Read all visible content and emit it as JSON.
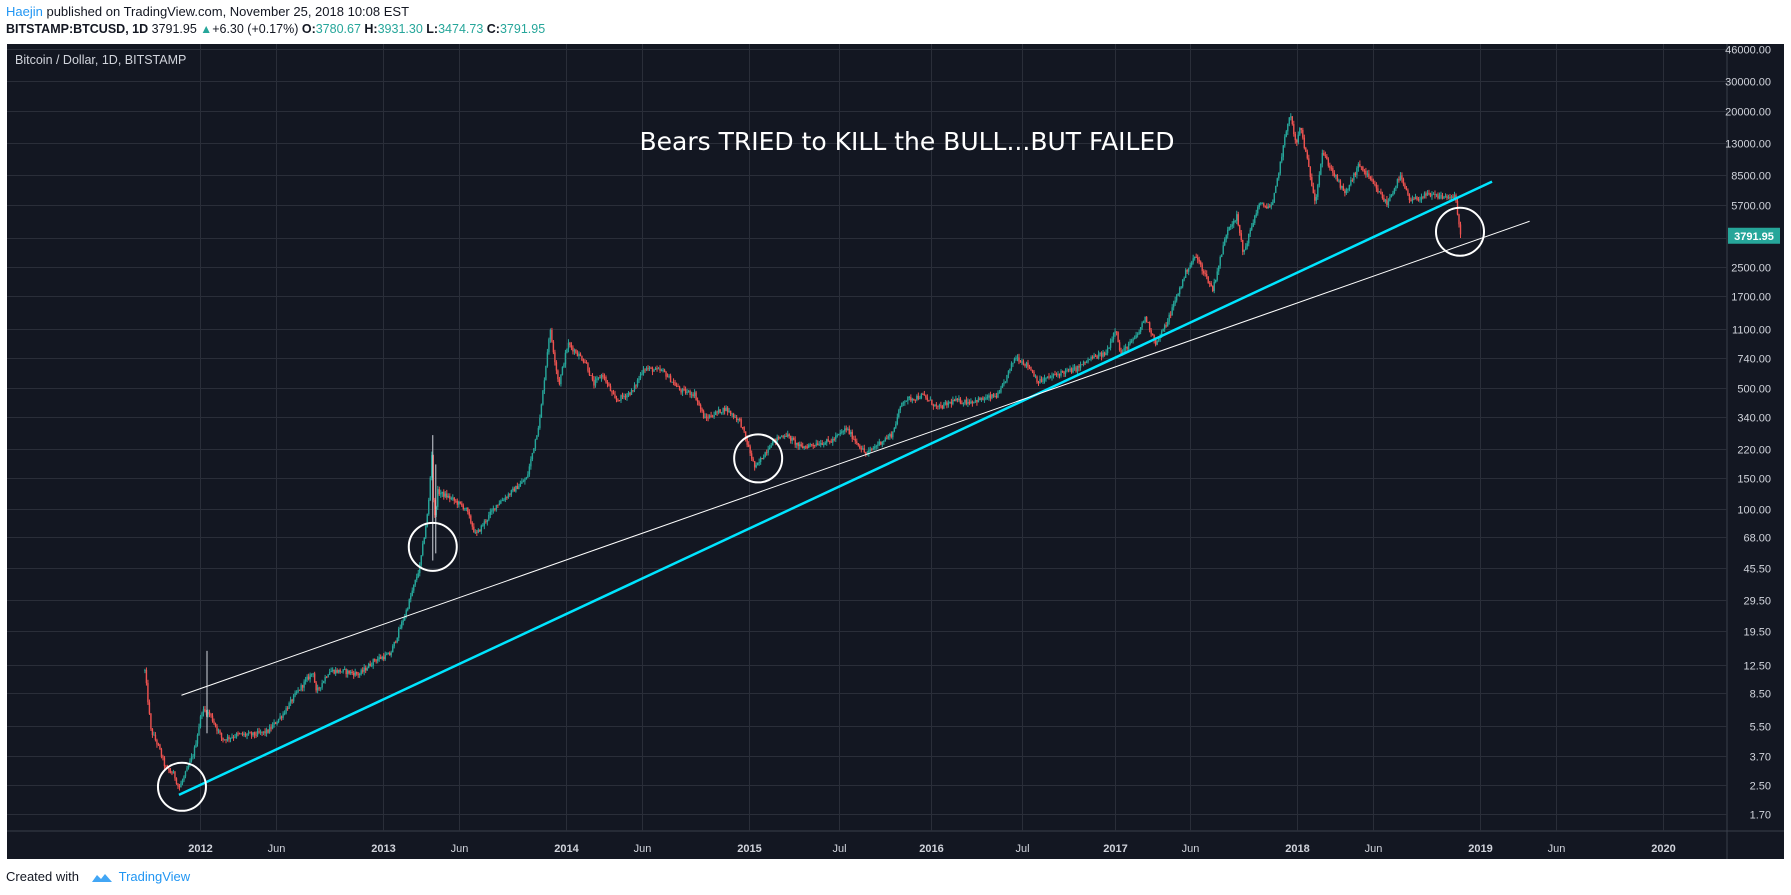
{
  "header": {
    "author": "Haejin",
    "published_text": " published on TradingView.com, November 25, 2018 10:08 EST",
    "symbol": "BITSTAMP:BTCUSD, 1D",
    "last": "3791.95",
    "change": "+6.30 (+0.17%)",
    "open_label": "O:",
    "open": "3780.67",
    "high_label": "H:",
    "high": "3931.30",
    "low_label": "L:",
    "low": "3474.73",
    "close_label": "C:",
    "close": "3791.95"
  },
  "footer": {
    "created_with": "Created with",
    "brand": "TradingView"
  },
  "colors": {
    "background": "#131722",
    "grid": "#2a2e39",
    "up": "#26a69a",
    "down": "#ef5350",
    "trendline_primary": "#00e5ff",
    "trendline_secondary": "#ffffff",
    "price_label": "#26a69a"
  },
  "chart_data": {
    "type": "candlestick",
    "title": "Bitcoin / Dollar, 1D, BITSTAMP",
    "annotation": "Bears TRIED to KILL the BULL...BUT FAILED",
    "y_scale": "log",
    "ylim": [
      1.4,
      46000
    ],
    "y_ticks": [
      "46000.00",
      "30000.00",
      "20000.00",
      "13000.00",
      "8500.00",
      "5700.00",
      "3700.00",
      "2500.00",
      "1700.00",
      "1100.00",
      "740.00",
      "500.00",
      "340.00",
      "220.00",
      "150.00",
      "100.00",
      "68.00",
      "45.50",
      "29.50",
      "19.50",
      "12.50",
      "8.50",
      "5.50",
      "3.70",
      "2.50",
      "1.70"
    ],
    "x_ticks": [
      {
        "label": "2012",
        "date": "2012-01-01",
        "bold": true
      },
      {
        "label": "Jun",
        "date": "2012-06-01",
        "bold": false
      },
      {
        "label": "2013",
        "date": "2013-01-01",
        "bold": true
      },
      {
        "label": "Jun",
        "date": "2013-06-01",
        "bold": false
      },
      {
        "label": "2014",
        "date": "2014-01-01",
        "bold": true
      },
      {
        "label": "Jun",
        "date": "2014-06-01",
        "bold": false
      },
      {
        "label": "2015",
        "date": "2015-01-01",
        "bold": true
      },
      {
        "label": "Jul",
        "date": "2015-07-01",
        "bold": false
      },
      {
        "label": "2016",
        "date": "2016-01-01",
        "bold": true
      },
      {
        "label": "Jul",
        "date": "2016-07-01",
        "bold": false
      },
      {
        "label": "2017",
        "date": "2017-01-01",
        "bold": true
      },
      {
        "label": "Jun",
        "date": "2017-06-01",
        "bold": false
      },
      {
        "label": "2018",
        "date": "2018-01-01",
        "bold": true
      },
      {
        "label": "Jun",
        "date": "2018-06-01",
        "bold": false
      },
      {
        "label": "2019",
        "date": "2019-01-01",
        "bold": true
      },
      {
        "label": "Jun",
        "date": "2019-06-01",
        "bold": false
      },
      {
        "label": "2020",
        "date": "2020-01-01",
        "bold": true
      }
    ],
    "price_path": [
      {
        "date": "2011-09-13",
        "price": 11.5
      },
      {
        "date": "2011-09-25",
        "price": 5.2
      },
      {
        "date": "2011-10-10",
        "price": 4.2
      },
      {
        "date": "2011-10-25",
        "price": 3.1
      },
      {
        "date": "2011-11-10",
        "price": 2.9
      },
      {
        "date": "2011-11-20",
        "price": 2.4
      },
      {
        "date": "2011-12-05",
        "price": 3.0
      },
      {
        "date": "2011-12-20",
        "price": 3.9
      },
      {
        "date": "2012-01-05",
        "price": 6.8
      },
      {
        "date": "2012-01-20",
        "price": 6.5
      },
      {
        "date": "2012-02-15",
        "price": 4.6
      },
      {
        "date": "2012-03-15",
        "price": 4.9
      },
      {
        "date": "2012-04-15",
        "price": 4.9
      },
      {
        "date": "2012-05-15",
        "price": 5.1
      },
      {
        "date": "2012-06-15",
        "price": 6.5
      },
      {
        "date": "2012-07-15",
        "price": 8.8
      },
      {
        "date": "2012-08-15",
        "price": 11.5
      },
      {
        "date": "2012-08-19",
        "price": 8.5
      },
      {
        "date": "2012-09-15",
        "price": 11.5
      },
      {
        "date": "2012-10-15",
        "price": 11.4
      },
      {
        "date": "2012-11-15",
        "price": 11.0
      },
      {
        "date": "2012-12-15",
        "price": 13.3
      },
      {
        "date": "2013-01-15",
        "price": 14.3
      },
      {
        "date": "2013-02-15",
        "price": 25
      },
      {
        "date": "2013-03-15",
        "price": 46
      },
      {
        "date": "2013-04-01",
        "price": 100
      },
      {
        "date": "2013-04-09",
        "price": 230
      },
      {
        "date": "2013-04-12",
        "price": 80
      },
      {
        "date": "2013-04-20",
        "price": 125
      },
      {
        "date": "2013-05-15",
        "price": 115
      },
      {
        "date": "2013-06-15",
        "price": 100
      },
      {
        "date": "2013-07-05",
        "price": 70
      },
      {
        "date": "2013-08-15",
        "price": 105
      },
      {
        "date": "2013-09-15",
        "price": 125
      },
      {
        "date": "2013-10-15",
        "price": 150
      },
      {
        "date": "2013-11-10",
        "price": 330
      },
      {
        "date": "2013-11-30",
        "price": 1100
      },
      {
        "date": "2013-12-18",
        "price": 520
      },
      {
        "date": "2014-01-05",
        "price": 900
      },
      {
        "date": "2014-02-10",
        "price": 700
      },
      {
        "date": "2014-02-25",
        "price": 520
      },
      {
        "date": "2014-03-15",
        "price": 600
      },
      {
        "date": "2014-04-10",
        "price": 420
      },
      {
        "date": "2014-05-15",
        "price": 480
      },
      {
        "date": "2014-06-05",
        "price": 650
      },
      {
        "date": "2014-07-15",
        "price": 620
      },
      {
        "date": "2014-08-18",
        "price": 480
      },
      {
        "date": "2014-09-15",
        "price": 460
      },
      {
        "date": "2014-10-05",
        "price": 330
      },
      {
        "date": "2014-11-15",
        "price": 380
      },
      {
        "date": "2014-12-15",
        "price": 320
      },
      {
        "date": "2015-01-14",
        "price": 170
      },
      {
        "date": "2015-02-15",
        "price": 240
      },
      {
        "date": "2015-03-15",
        "price": 270
      },
      {
        "date": "2015-04-15",
        "price": 225
      },
      {
        "date": "2015-05-15",
        "price": 238
      },
      {
        "date": "2015-06-15",
        "price": 245
      },
      {
        "date": "2015-07-15",
        "price": 290
      },
      {
        "date": "2015-08-24",
        "price": 205
      },
      {
        "date": "2015-09-15",
        "price": 235
      },
      {
        "date": "2015-10-15",
        "price": 270
      },
      {
        "date": "2015-11-04",
        "price": 420
      },
      {
        "date": "2015-12-15",
        "price": 450
      },
      {
        "date": "2016-01-15",
        "price": 380
      },
      {
        "date": "2016-02-15",
        "price": 420
      },
      {
        "date": "2016-03-15",
        "price": 415
      },
      {
        "date": "2016-04-15",
        "price": 430
      },
      {
        "date": "2016-05-15",
        "price": 455
      },
      {
        "date": "2016-06-17",
        "price": 760
      },
      {
        "date": "2016-07-15",
        "price": 660
      },
      {
        "date": "2016-08-02",
        "price": 540
      },
      {
        "date": "2016-09-15",
        "price": 610
      },
      {
        "date": "2016-10-15",
        "price": 640
      },
      {
        "date": "2016-11-15",
        "price": 740
      },
      {
        "date": "2016-12-15",
        "price": 790
      },
      {
        "date": "2017-01-04",
        "price": 1130
      },
      {
        "date": "2017-01-12",
        "price": 780
      },
      {
        "date": "2017-02-15",
        "price": 1000
      },
      {
        "date": "2017-03-03",
        "price": 1280
      },
      {
        "date": "2017-03-25",
        "price": 900
      },
      {
        "date": "2017-04-15",
        "price": 1180
      },
      {
        "date": "2017-05-25",
        "price": 2400
      },
      {
        "date": "2017-06-12",
        "price": 2900
      },
      {
        "date": "2017-07-16",
        "price": 1850
      },
      {
        "date": "2017-08-15",
        "price": 4200
      },
      {
        "date": "2017-09-02",
        "price": 4900
      },
      {
        "date": "2017-09-15",
        "price": 2980
      },
      {
        "date": "2017-10-15",
        "price": 5700
      },
      {
        "date": "2017-11-12",
        "price": 5600
      },
      {
        "date": "2017-11-28",
        "price": 10000
      },
      {
        "date": "2017-12-17",
        "price": 19600
      },
      {
        "date": "2017-12-30",
        "price": 12500
      },
      {
        "date": "2018-01-07",
        "price": 16500
      },
      {
        "date": "2018-02-06",
        "price": 6000
      },
      {
        "date": "2018-02-20",
        "price": 11500
      },
      {
        "date": "2018-04-06",
        "price": 6600
      },
      {
        "date": "2018-05-05",
        "price": 9800
      },
      {
        "date": "2018-06-29",
        "price": 5800
      },
      {
        "date": "2018-07-25",
        "price": 8400
      },
      {
        "date": "2018-08-14",
        "price": 6000
      },
      {
        "date": "2018-09-15",
        "price": 6500
      },
      {
        "date": "2018-10-15",
        "price": 6400
      },
      {
        "date": "2018-11-13",
        "price": 6300
      },
      {
        "date": "2018-11-20",
        "price": 4300
      },
      {
        "date": "2018-11-25",
        "price": 3792
      }
    ],
    "wicks": [
      {
        "date": "2012-01-15",
        "high": 15.0,
        "low": 5.0
      },
      {
        "date": "2013-04-10",
        "high": 266,
        "low": 50
      },
      {
        "date": "2013-04-16",
        "high": 180,
        "low": 55
      }
    ],
    "trendlines": [
      {
        "name": "cyan",
        "color": "#00e5ff",
        "width": 2.5,
        "from": {
          "date": "2011-11-20",
          "price": 2.2
        },
        "to": {
          "date": "2019-01-25",
          "price": 7800
        }
      },
      {
        "name": "white",
        "color": "#ffffff",
        "width": 1,
        "from": {
          "date": "2011-11-25",
          "price": 8.3
        },
        "to": {
          "date": "2019-04-10",
          "price": 4600
        }
      }
    ],
    "circles": [
      {
        "date": "2011-11-26",
        "price": 2.45
      },
      {
        "date": "2013-04-10",
        "price": 60
      },
      {
        "date": "2015-01-20",
        "price": 195
      },
      {
        "date": "2018-11-22",
        "price": 4000
      }
    ],
    "current_price": {
      "price": 3791.95,
      "label": "3791.95"
    }
  }
}
